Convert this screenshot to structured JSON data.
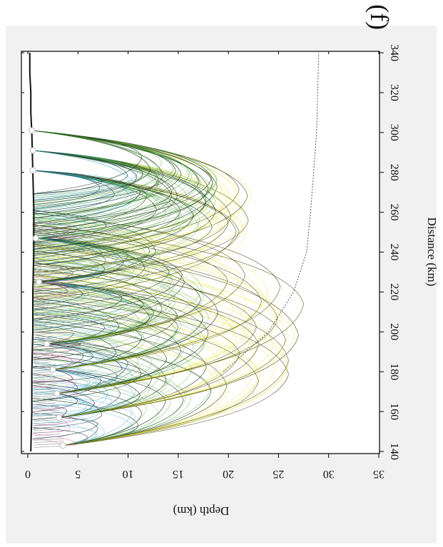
{
  "panel_label": "(f)",
  "chart_data": {
    "type": "line",
    "title": "",
    "xlabel": "Distance (km)",
    "ylabel": "Depth (km)",
    "xlim": [
      140,
      340
    ],
    "ylim": [
      0,
      35
    ],
    "y_inverted": true,
    "xticks": [
      140,
      160,
      180,
      200,
      220,
      240,
      260,
      280,
      300,
      320,
      340
    ],
    "yticks": [
      0,
      5,
      10,
      15,
      20,
      25,
      30,
      35
    ],
    "grid": false,
    "legend": "none",
    "orientation": "rotated 90 degrees clockwise (distance axis runs top to bottom on the right side)",
    "colors": {
      "panel_background": "#f1f1f1",
      "sediment_rays": "#9a9a9a",
      "upper_crust_rays": "#cc1a8a",
      "mid_crust_rays": "#2a9fc4",
      "lower_crust_rays": "#3d9a2a",
      "deep_rays": "#e6e21f",
      "ray_outline": "#1a1a1a"
    },
    "series": [
      {
        "role": "bathymetry",
        "x": [
          140,
          160,
          180,
          200,
          220,
          240,
          256,
          262,
          280,
          300,
          310,
          320,
          330,
          340
        ],
        "y": [
          0.3,
          0.4,
          0.4,
          0.5,
          0.5,
          0.6,
          0.6,
          0.6,
          0.5,
          0.4,
          0.3,
          0.3,
          0.2,
          0.2
        ]
      },
      {
        "role": "moho",
        "x": [
          180,
          200,
          220,
          240,
          260,
          280,
          300,
          320,
          340
        ],
        "y": [
          19.5,
          24.0,
          26.5,
          27.8,
          28.2,
          28.5,
          28.8,
          28.9,
          29.0
        ]
      },
      {
        "role": "receivers",
        "x": [
          143,
          157,
          169,
          181,
          194,
          225,
          247,
          281,
          291,
          301
        ],
        "y": [
          3.5,
          3.1,
          2.9,
          2.5,
          1.9,
          1.1,
          0.8,
          0.5,
          0.5,
          0.4
        ]
      },
      {
        "role": "ray_fan",
        "sources": [
          {
            "x": 143,
            "y": 3.5,
            "reach_x": [
              143,
              230
            ],
            "max_depth": 26
          },
          {
            "x": 157,
            "y": 3.1,
            "reach_x": [
              146,
              245
            ],
            "max_depth": 27
          },
          {
            "x": 169,
            "y": 2.9,
            "reach_x": [
              150,
              255
            ],
            "max_depth": 27.5
          },
          {
            "x": 181,
            "y": 2.5,
            "reach_x": [
              155,
              262
            ],
            "max_depth": 28
          },
          {
            "x": 194,
            "y": 1.9,
            "reach_x": [
              165,
              262
            ],
            "max_depth": 28
          },
          {
            "x": 225,
            "y": 1.1,
            "reach_x": [
              185,
              262
            ],
            "max_depth": 28
          },
          {
            "x": 247,
            "y": 0.8,
            "reach_x": [
              200,
              262
            ],
            "max_depth": 28
          },
          {
            "x": 281,
            "y": 0.5,
            "reach_x": [
              215,
              270
            ],
            "max_depth": 28.2
          },
          {
            "x": 291,
            "y": 0.5,
            "reach_x": [
              225,
              270
            ],
            "max_depth": 28.3
          },
          {
            "x": 301,
            "y": 0.4,
            "reach_x": [
              235,
              270
            ],
            "max_depth": 28.3
          }
        ]
      }
    ]
  }
}
